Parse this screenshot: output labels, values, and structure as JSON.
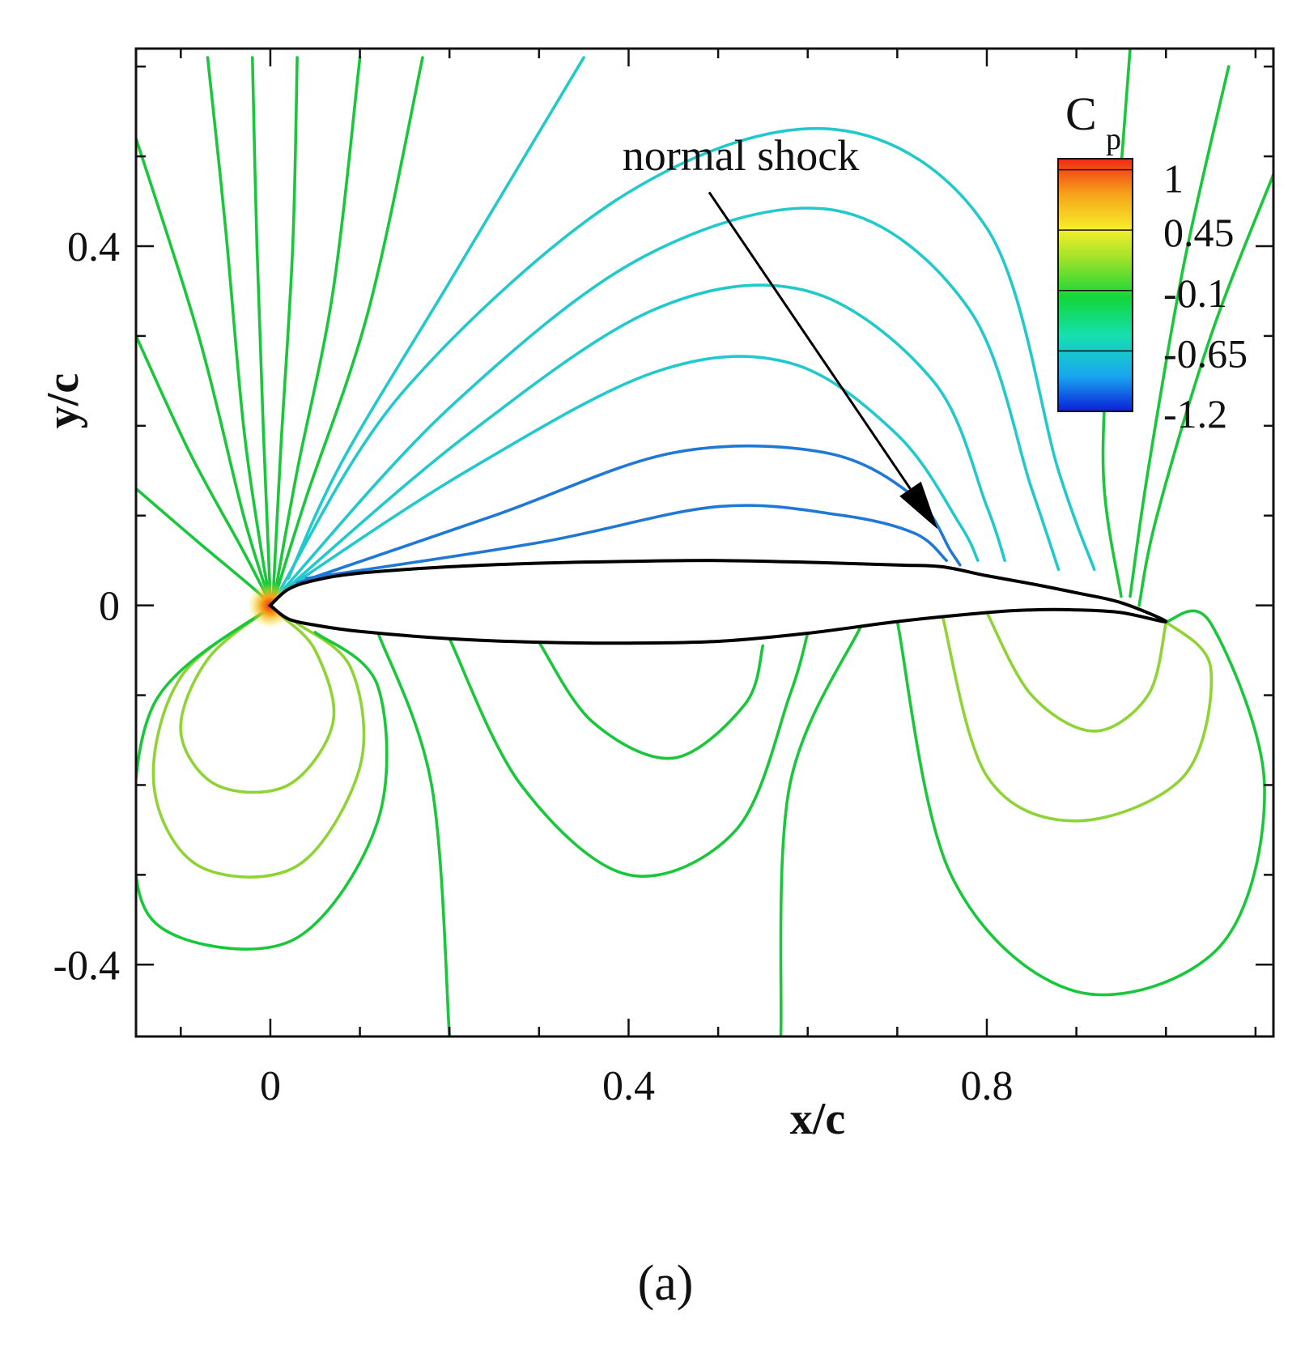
{
  "caption": "(a)",
  "colors": {
    "airfoil": "#000000",
    "frame": "#111111",
    "green": "#19c73a",
    "cyan": "#22c9cc",
    "blue": "#1f78d6",
    "lime": "#8fd334",
    "orange": "#f08a1c"
  },
  "chart_data": {
    "type": "contour",
    "title": "",
    "xlabel": "x/c",
    "ylabel": "y/c",
    "xlim": [
      -0.15,
      1.12
    ],
    "ylim": [
      -0.48,
      0.62
    ],
    "x_ticks": [
      0,
      0.4,
      0.8
    ],
    "x_tick_labels": [
      "0",
      "0.4",
      "0.8"
    ],
    "y_ticks": [
      0.4,
      0,
      -0.4
    ],
    "y_tick_labels": [
      "0.4",
      "0",
      "-0.4"
    ],
    "grid": false,
    "colorbar": {
      "title": "C",
      "subscript": "p",
      "placement": "top-right",
      "levels": [
        1,
        0.45,
        -0.1,
        -0.65,
        -1.2
      ],
      "level_labels": [
        "1",
        "0.45",
        "-0.1",
        "-0.65",
        "-1.2"
      ],
      "colormap": [
        "#0a1fd8",
        "#1aa6f0",
        "#16e0b0",
        "#12d63a",
        "#9be22a",
        "#f6ee2a",
        "#f7a21a",
        "#ef2a12"
      ]
    },
    "annotations": [
      {
        "text": "normal shock",
        "arrow_from": [
          0.49,
          0.46
        ],
        "arrow_to": [
          0.745,
          0.085
        ]
      }
    ],
    "airfoil": {
      "upper": [
        [
          0,
          0
        ],
        [
          0.02,
          0.018
        ],
        [
          0.05,
          0.028
        ],
        [
          0.1,
          0.036
        ],
        [
          0.2,
          0.043
        ],
        [
          0.3,
          0.047
        ],
        [
          0.4,
          0.049
        ],
        [
          0.5,
          0.05
        ],
        [
          0.6,
          0.048
        ],
        [
          0.7,
          0.045
        ],
        [
          0.75,
          0.043
        ],
        [
          0.8,
          0.033
        ],
        [
          0.85,
          0.024
        ],
        [
          0.9,
          0.014
        ],
        [
          0.95,
          0.003
        ],
        [
          1.0,
          -0.018
        ]
      ],
      "lower": [
        [
          0,
          0
        ],
        [
          0.02,
          -0.015
        ],
        [
          0.05,
          -0.022
        ],
        [
          0.1,
          -0.029
        ],
        [
          0.2,
          -0.037
        ],
        [
          0.3,
          -0.041
        ],
        [
          0.4,
          -0.042
        ],
        [
          0.5,
          -0.04
        ],
        [
          0.6,
          -0.031
        ],
        [
          0.7,
          -0.018
        ],
        [
          0.8,
          -0.008
        ],
        [
          0.85,
          -0.005
        ],
        [
          0.9,
          -0.005
        ],
        [
          0.95,
          -0.008
        ],
        [
          1.0,
          -0.018
        ]
      ]
    },
    "contour_lines": [
      {
        "color": "#19c73a",
        "points": [
          [
            -0.07,
            0.61
          ],
          [
            -0.05,
            0.42
          ],
          [
            -0.03,
            0.2
          ],
          [
            -0.01,
            0.06
          ],
          [
            0,
            0.005
          ]
        ]
      },
      {
        "color": "#19c73a",
        "points": [
          [
            -0.02,
            0.61
          ],
          [
            -0.015,
            0.4
          ],
          [
            -0.008,
            0.2
          ],
          [
            0,
            0.008
          ]
        ]
      },
      {
        "color": "#19c73a",
        "points": [
          [
            0.03,
            0.61
          ],
          [
            0.025,
            0.4
          ],
          [
            0.012,
            0.18
          ],
          [
            0.003,
            0.01
          ]
        ]
      },
      {
        "color": "#19c73a",
        "points": [
          [
            0.1,
            0.61
          ],
          [
            0.07,
            0.35
          ],
          [
            0.03,
            0.15
          ],
          [
            0.005,
            0.012
          ]
        ]
      },
      {
        "color": "#19c73a",
        "points": [
          [
            0.17,
            0.61
          ],
          [
            0.11,
            0.33
          ],
          [
            0.04,
            0.12
          ],
          [
            0.006,
            0.012
          ]
        ]
      },
      {
        "color": "#22c9cc",
        "points": [
          [
            0.35,
            0.61
          ],
          [
            0.2,
            0.36
          ],
          [
            0.08,
            0.16
          ],
          [
            0.02,
            0.03
          ]
        ]
      },
      {
        "color": "#22c9cc",
        "points": [
          [
            0.009,
            0.014
          ],
          [
            0.15,
            0.24
          ],
          [
            0.4,
            0.46
          ],
          [
            0.63,
            0.53
          ],
          [
            0.8,
            0.42
          ],
          [
            0.88,
            0.15
          ],
          [
            0.92,
            0.04
          ]
        ]
      },
      {
        "color": "#22c9cc",
        "points": [
          [
            0.012,
            0.015
          ],
          [
            0.2,
            0.22
          ],
          [
            0.42,
            0.39
          ],
          [
            0.63,
            0.44
          ],
          [
            0.78,
            0.33
          ],
          [
            0.85,
            0.13
          ],
          [
            0.88,
            0.04
          ]
        ]
      },
      {
        "color": "#22c9cc",
        "points": [
          [
            0.015,
            0.016
          ],
          [
            0.22,
            0.19
          ],
          [
            0.43,
            0.33
          ],
          [
            0.6,
            0.35
          ],
          [
            0.74,
            0.25
          ],
          [
            0.8,
            0.11
          ],
          [
            0.82,
            0.05
          ]
        ]
      },
      {
        "color": "#22c9cc",
        "points": [
          [
            0.02,
            0.02
          ],
          [
            0.22,
            0.15
          ],
          [
            0.43,
            0.26
          ],
          [
            0.58,
            0.27
          ],
          [
            0.7,
            0.19
          ],
          [
            0.77,
            0.09
          ],
          [
            0.79,
            0.05
          ]
        ]
      },
      {
        "color": "#1f78d6",
        "points": [
          [
            0.03,
            0.025
          ],
          [
            0.25,
            0.1
          ],
          [
            0.45,
            0.17
          ],
          [
            0.62,
            0.17
          ],
          [
            0.72,
            0.12
          ],
          [
            0.76,
            0.06
          ],
          [
            0.77,
            0.045
          ]
        ]
      },
      {
        "color": "#1f78d6",
        "points": [
          [
            0.04,
            0.03
          ],
          [
            0.3,
            0.07
          ],
          [
            0.5,
            0.11
          ],
          [
            0.64,
            0.1
          ],
          [
            0.72,
            0.08
          ],
          [
            0.755,
            0.05
          ]
        ]
      },
      {
        "color": "#19c73a",
        "points": [
          [
            -0.15,
            0.52
          ],
          [
            -0.08,
            0.3
          ],
          [
            -0.03,
            0.1
          ],
          [
            0,
            0.003
          ]
        ]
      },
      {
        "color": "#19c73a",
        "points": [
          [
            -0.15,
            0.3
          ],
          [
            -0.09,
            0.17
          ],
          [
            -0.03,
            0.06
          ],
          [
            0,
            0.002
          ]
        ]
      },
      {
        "color": "#19c73a",
        "points": [
          [
            -0.15,
            0.13
          ],
          [
            -0.08,
            0.07
          ],
          [
            -0.02,
            0.02
          ],
          [
            0,
            0.001
          ]
        ]
      },
      {
        "color": "#19c73a",
        "points": [
          [
            0.96,
            0.62
          ],
          [
            0.94,
            0.35
          ],
          [
            0.93,
            0.15
          ],
          [
            0.95,
            0.01
          ]
        ]
      },
      {
        "color": "#19c73a",
        "points": [
          [
            1.07,
            0.6
          ],
          [
            1.02,
            0.38
          ],
          [
            0.98,
            0.15
          ],
          [
            0.96,
            0.01
          ]
        ]
      },
      {
        "color": "#19c73a",
        "points": [
          [
            1.12,
            0.48
          ],
          [
            1.05,
            0.3
          ],
          [
            0.99,
            0.1
          ],
          [
            0.97,
            0.0
          ]
        ]
      },
      {
        "color": "#8fd334",
        "points": [
          [
            0,
            -0.002
          ],
          [
            -0.07,
            -0.06
          ],
          [
            -0.1,
            -0.14
          ],
          [
            -0.06,
            -0.2
          ],
          [
            0.02,
            -0.2
          ],
          [
            0.07,
            -0.13
          ],
          [
            0.05,
            -0.05
          ],
          [
            0.01,
            -0.01
          ]
        ]
      },
      {
        "color": "#8fd334",
        "points": [
          [
            0,
            -0.002
          ],
          [
            -0.1,
            -0.08
          ],
          [
            -0.13,
            -0.2
          ],
          [
            -0.08,
            -0.29
          ],
          [
            0.03,
            -0.29
          ],
          [
            0.1,
            -0.18
          ],
          [
            0.09,
            -0.07
          ],
          [
            0.03,
            -0.02
          ]
        ]
      },
      {
        "color": "#19c73a",
        "points": [
          [
            0,
            -0.002
          ],
          [
            -0.13,
            -0.11
          ],
          [
            -0.15,
            -0.3
          ],
          [
            -0.1,
            -0.37
          ],
          [
            0.03,
            -0.37
          ],
          [
            0.12,
            -0.24
          ],
          [
            0.12,
            -0.09
          ],
          [
            0.05,
            -0.03
          ]
        ]
      },
      {
        "color": "#19c73a",
        "points": [
          [
            0.12,
            -0.03
          ],
          [
            0.18,
            -0.2
          ],
          [
            0.2,
            -0.48
          ]
        ]
      },
      {
        "color": "#19c73a",
        "points": [
          [
            0.2,
            -0.037
          ],
          [
            0.28,
            -0.2
          ],
          [
            0.4,
            -0.3
          ],
          [
            0.52,
            -0.25
          ],
          [
            0.58,
            -0.1
          ],
          [
            0.6,
            -0.031
          ]
        ]
      },
      {
        "color": "#19c73a",
        "points": [
          [
            0.3,
            -0.041
          ],
          [
            0.36,
            -0.13
          ],
          [
            0.45,
            -0.17
          ],
          [
            0.53,
            -0.11
          ],
          [
            0.55,
            -0.045
          ]
        ]
      },
      {
        "color": "#19c73a",
        "points": [
          [
            0.66,
            -0.022
          ],
          [
            0.58,
            -0.2
          ],
          [
            0.57,
            -0.48
          ]
        ]
      },
      {
        "color": "#8fd334",
        "points": [
          [
            0.8,
            -0.008
          ],
          [
            0.85,
            -0.1
          ],
          [
            0.92,
            -0.14
          ],
          [
            0.98,
            -0.1
          ],
          [
            1.0,
            -0.02
          ]
        ]
      },
      {
        "color": "#8fd334",
        "points": [
          [
            0.75,
            -0.01
          ],
          [
            0.8,
            -0.19
          ],
          [
            0.9,
            -0.24
          ],
          [
            1.02,
            -0.19
          ],
          [
            1.05,
            -0.07
          ],
          [
            1.0,
            -0.018
          ]
        ]
      },
      {
        "color": "#19c73a",
        "points": [
          [
            0.7,
            -0.018
          ],
          [
            0.76,
            -0.3
          ],
          [
            0.9,
            -0.43
          ],
          [
            1.06,
            -0.38
          ],
          [
            1.11,
            -0.2
          ],
          [
            1.05,
            -0.02
          ],
          [
            1.0,
            -0.018
          ]
        ]
      }
    ]
  }
}
